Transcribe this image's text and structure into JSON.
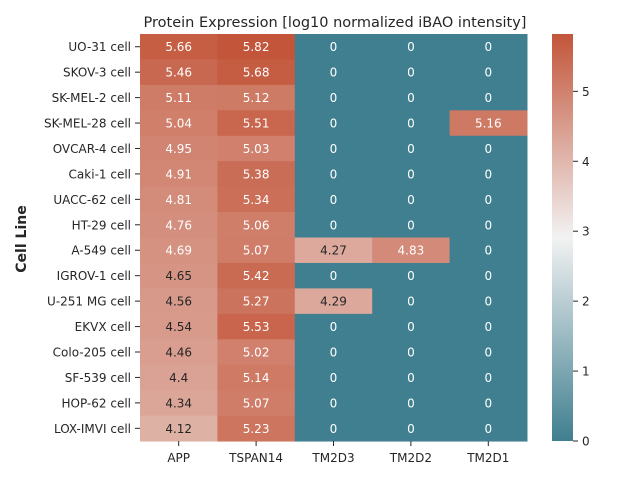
{
  "chart_data": {
    "type": "heatmap",
    "title": "Protein Expression [log10 normalized iBAO intensity]",
    "xlabel": "",
    "ylabel": "Cell Line",
    "columns": [
      "APP",
      "TSPAN14",
      "TM2D3",
      "TM2D2",
      "TM2D1"
    ],
    "rows": [
      "UO-31 cell",
      "SKOV-3 cell",
      "SK-MEL-2 cell",
      "SK-MEL-28 cell",
      "OVCAR-4 cell",
      "Caki-1 cell",
      "UACC-62 cell",
      "HT-29 cell",
      "A-549 cell",
      "IGROV-1 cell",
      "U-251 MG cell",
      "EKVX cell",
      "Colo-205 cell",
      "SF-539 cell",
      "HOP-62 cell",
      "LOX-IMVI cell"
    ],
    "values": [
      [
        5.66,
        5.82,
        0,
        0,
        0
      ],
      [
        5.46,
        5.68,
        0,
        0,
        0
      ],
      [
        5.11,
        5.12,
        0,
        0,
        0
      ],
      [
        5.04,
        5.51,
        0,
        0,
        5.16
      ],
      [
        4.95,
        5.03,
        0,
        0,
        0
      ],
      [
        4.91,
        5.38,
        0,
        0,
        0
      ],
      [
        4.81,
        5.34,
        0,
        0,
        0
      ],
      [
        4.76,
        5.06,
        0,
        0,
        0
      ],
      [
        4.69,
        5.07,
        4.27,
        4.83,
        0
      ],
      [
        4.65,
        5.42,
        0,
        0,
        0
      ],
      [
        4.56,
        5.27,
        4.29,
        0,
        0
      ],
      [
        4.54,
        5.53,
        0,
        0,
        0
      ],
      [
        4.46,
        5.02,
        0,
        0,
        0
      ],
      [
        4.4,
        5.14,
        0,
        0,
        0
      ],
      [
        4.34,
        5.07,
        0,
        0,
        0
      ],
      [
        4.12,
        5.23,
        0,
        0,
        0
      ]
    ],
    "colorbar": {
      "min": 0,
      "max": 5.82,
      "ticks": [
        0,
        1,
        2,
        3,
        4,
        5
      ],
      "colormap": [
        "#3f7f8f",
        "#f2f2f2",
        "#c3553a"
      ]
    },
    "grid": false,
    "legend": "colorbar-right"
  }
}
